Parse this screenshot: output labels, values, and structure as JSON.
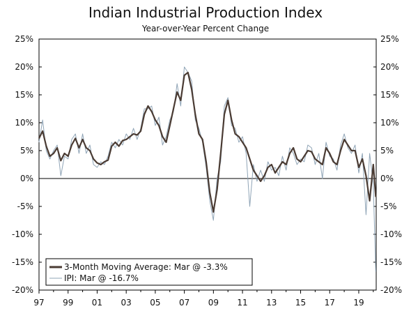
{
  "chart_data": {
    "type": "line",
    "title": "Indian Industrial Production Index",
    "subtitle": "Year-over-Year Percent Change",
    "xlabel": "",
    "ylabel": "",
    "xlim": [
      1997,
      2020.2
    ],
    "ylim": [
      -20,
      25
    ],
    "y_ticks": [
      25,
      20,
      15,
      10,
      5,
      0,
      -5,
      -10,
      -15,
      -20
    ],
    "y_tick_labels": [
      "25%",
      "20%",
      "15%",
      "10%",
      "5%",
      "0%",
      "-5%",
      "-10%",
      "-15%",
      "-20%"
    ],
    "x_ticks": [
      1997,
      1999,
      2001,
      2003,
      2005,
      2007,
      2009,
      2011,
      2013,
      2015,
      2017,
      2019
    ],
    "x_tick_labels": [
      "97",
      "99",
      "01",
      "03",
      "05",
      "07",
      "09",
      "11",
      "13",
      "15",
      "17",
      "19"
    ],
    "zero_line": true,
    "grid": false,
    "legend_position": "bottom-left",
    "colors": {
      "moving_average": "#4a3b33",
      "ipi": "#8fa4b6",
      "axis": "#000000"
    },
    "series": [
      {
        "name": "3-Month Moving Average: Mar @ -3.3%",
        "x": [
          1997.0,
          1997.25,
          1997.5,
          1997.75,
          1998.0,
          1998.25,
          1998.5,
          1998.75,
          1999.0,
          1999.25,
          1999.5,
          1999.75,
          2000.0,
          2000.25,
          2000.5,
          2000.75,
          2001.0,
          2001.25,
          2001.5,
          2001.75,
          2002.0,
          2002.25,
          2002.5,
          2002.75,
          2003.0,
          2003.25,
          2003.5,
          2003.75,
          2004.0,
          2004.25,
          2004.5,
          2004.75,
          2005.0,
          2005.25,
          2005.5,
          2005.75,
          2006.0,
          2006.25,
          2006.5,
          2006.75,
          2007.0,
          2007.25,
          2007.5,
          2007.75,
          2008.0,
          2008.25,
          2008.5,
          2008.75,
          2009.0,
          2009.25,
          2009.5,
          2009.75,
          2010.0,
          2010.25,
          2010.5,
          2010.75,
          2011.0,
          2011.25,
          2011.5,
          2011.75,
          2012.0,
          2012.25,
          2012.5,
          2012.75,
          2013.0,
          2013.25,
          2013.5,
          2013.75,
          2014.0,
          2014.25,
          2014.5,
          2014.75,
          2015.0,
          2015.25,
          2015.5,
          2015.75,
          2016.0,
          2016.25,
          2016.5,
          2016.75,
          2017.0,
          2017.25,
          2017.5,
          2017.75,
          2018.0,
          2018.25,
          2018.5,
          2018.75,
          2019.0,
          2019.25,
          2019.5,
          2019.75,
          2020.0,
          2020.17
        ],
        "values": [
          7.2,
          8.5,
          5.8,
          4.0,
          4.5,
          5.5,
          3.2,
          4.5,
          4.0,
          6.0,
          7.2,
          5.5,
          7.0,
          5.5,
          5.0,
          3.5,
          2.8,
          2.5,
          3.0,
          3.3,
          5.8,
          6.5,
          5.8,
          6.8,
          7.0,
          7.5,
          8.0,
          7.8,
          8.5,
          11.5,
          13.0,
          12.0,
          10.5,
          9.5,
          7.5,
          6.5,
          9.5,
          12.5,
          15.5,
          14.0,
          18.5,
          19.0,
          16.0,
          11.5,
          8.0,
          7.0,
          3.0,
          -2.5,
          -6.0,
          -2.0,
          4.5,
          11.5,
          14.0,
          10.5,
          8.0,
          7.5,
          6.5,
          5.5,
          3.5,
          1.5,
          0.5,
          -0.5,
          0.5,
          2.0,
          2.5,
          1.0,
          2.0,
          3.0,
          2.5,
          4.5,
          5.5,
          3.5,
          3.0,
          4.0,
          5.0,
          4.8,
          3.5,
          3.0,
          2.5,
          5.5,
          4.5,
          3.0,
          2.5,
          5.0,
          7.0,
          6.0,
          5.0,
          5.0,
          2.0,
          3.5,
          0.5,
          -4.0,
          2.5,
          -3.3
        ]
      },
      {
        "name": "IPI: Mar @ -16.7%",
        "x": [
          1997.0,
          1997.25,
          1997.5,
          1997.75,
          1998.0,
          1998.25,
          1998.5,
          1998.75,
          1999.0,
          1999.25,
          1999.5,
          1999.75,
          2000.0,
          2000.25,
          2000.5,
          2000.75,
          2001.0,
          2001.25,
          2001.5,
          2001.75,
          2002.0,
          2002.25,
          2002.5,
          2002.75,
          2003.0,
          2003.25,
          2003.5,
          2003.75,
          2004.0,
          2004.25,
          2004.5,
          2004.75,
          2005.0,
          2005.25,
          2005.5,
          2005.75,
          2006.0,
          2006.25,
          2006.5,
          2006.75,
          2007.0,
          2007.25,
          2007.5,
          2007.75,
          2008.0,
          2008.25,
          2008.5,
          2008.75,
          2009.0,
          2009.25,
          2009.5,
          2009.75,
          2010.0,
          2010.25,
          2010.5,
          2010.75,
          2011.0,
          2011.25,
          2011.5,
          2011.75,
          2012.0,
          2012.25,
          2012.5,
          2012.75,
          2013.0,
          2013.25,
          2013.5,
          2013.75,
          2014.0,
          2014.25,
          2014.5,
          2014.75,
          2015.0,
          2015.25,
          2015.5,
          2015.75,
          2016.0,
          2016.25,
          2016.5,
          2016.75,
          2017.0,
          2017.25,
          2017.5,
          2017.75,
          2018.0,
          2018.25,
          2018.5,
          2018.75,
          2019.0,
          2019.25,
          2019.5,
          2019.75,
          2020.0,
          2020.17
        ],
        "values": [
          6.5,
          10.5,
          5.0,
          3.5,
          5.0,
          6.0,
          0.5,
          4.0,
          3.5,
          7.0,
          8.0,
          4.5,
          8.0,
          4.5,
          6.0,
          2.5,
          2.0,
          3.0,
          2.5,
          4.0,
          6.5,
          5.5,
          7.0,
          6.0,
          8.0,
          7.0,
          9.0,
          7.0,
          9.0,
          12.5,
          12.5,
          13.0,
          9.5,
          11.0,
          6.0,
          7.5,
          10.5,
          12.0,
          17.0,
          13.0,
          20.0,
          19.0,
          17.5,
          10.5,
          9.0,
          6.5,
          2.0,
          -4.0,
          -7.5,
          0.0,
          3.0,
          13.0,
          14.5,
          9.5,
          9.0,
          6.5,
          7.5,
          4.5,
          -5.0,
          2.5,
          -0.5,
          1.5,
          -0.5,
          3.0,
          1.5,
          2.0,
          0.5,
          4.0,
          1.5,
          5.5,
          4.5,
          2.5,
          3.5,
          3.0,
          6.0,
          5.5,
          2.5,
          4.5,
          0.0,
          6.5,
          4.0,
          3.5,
          1.5,
          6.0,
          8.0,
          5.5,
          4.5,
          6.0,
          1.0,
          4.5,
          -6.5,
          4.5,
          -1.0,
          -16.7
        ]
      }
    ]
  }
}
